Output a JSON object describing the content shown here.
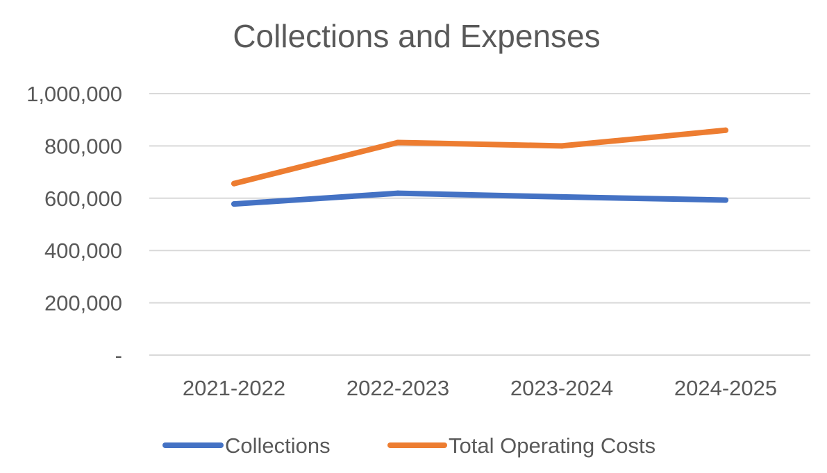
{
  "chart_data": {
    "type": "line",
    "title": "Collections and Expenses",
    "xlabel": "",
    "ylabel": "",
    "categories": [
      "2021-2022",
      "2022-2023",
      "2023-2024",
      "2024-2025"
    ],
    "series": [
      {
        "name": "Collections",
        "color": "#4472C4",
        "values": [
          578000,
          619000,
          605000,
          593000
        ]
      },
      {
        "name": "Total Operating Costs",
        "color": "#ED7D31",
        "values": [
          656000,
          813000,
          800000,
          860000
        ]
      }
    ],
    "ylim": [
      0,
      1000000
    ],
    "yticks": [
      0,
      200000,
      400000,
      600000,
      800000,
      1000000
    ],
    "ytick_labels": [
      "-",
      "200,000",
      "400,000",
      "600,000",
      "800,000",
      "1,000,000"
    ],
    "grid": true,
    "legend_position": "bottom",
    "gridline_color": "#D9D9D9"
  }
}
